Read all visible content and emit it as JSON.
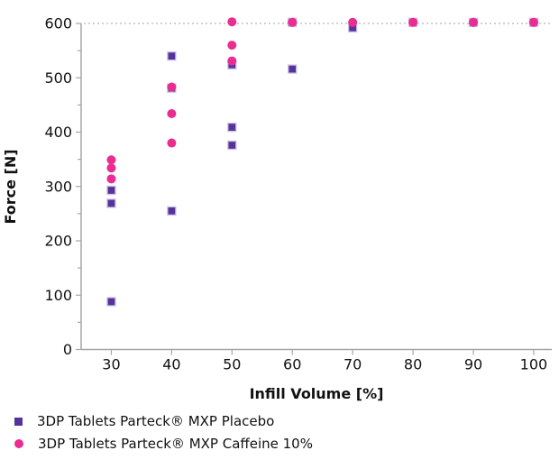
{
  "chart_data": {
    "type": "scatter",
    "title": "",
    "xlabel": "Infill Volume [%]",
    "ylabel": "Force [N]",
    "xlim": [
      25,
      103
    ],
    "ylim": [
      0,
      600
    ],
    "x_ticks": [
      30,
      40,
      50,
      60,
      70,
      80,
      90,
      100
    ],
    "y_ticks": [
      0,
      100,
      200,
      300,
      400,
      500,
      600
    ],
    "y_minor_ticks": [
      50,
      150,
      250,
      350,
      450,
      550
    ],
    "grid": false,
    "legend_position": "bottom-left",
    "axis_color": "#A6A6A6",
    "text_color": "#111111",
    "reference_line": {
      "y": 600,
      "style": "dotted",
      "color": "#B3B3B3"
    },
    "series": [
      {
        "name": "3DP Tablets Parteck® MXP Placebo",
        "marker": "square",
        "color": "#56339B",
        "border_color": "#CBBFE5",
        "points": [
          [
            30,
            88
          ],
          [
            30,
            269
          ],
          [
            30,
            293
          ],
          [
            40,
            255
          ],
          [
            40,
            481
          ],
          [
            40,
            540
          ],
          [
            50,
            376
          ],
          [
            50,
            409
          ],
          [
            50,
            524
          ],
          [
            60,
            516
          ],
          [
            60,
            602
          ],
          [
            70,
            592
          ],
          [
            80,
            602
          ],
          [
            90,
            602
          ],
          [
            100,
            602
          ]
        ]
      },
      {
        "name": "3DP Tablets Parteck® MXP Caffeine 10%",
        "marker": "circle",
        "color": "#EB2D92",
        "border_color": "#EB2D92",
        "points": [
          [
            30,
            314
          ],
          [
            30,
            334
          ],
          [
            30,
            349
          ],
          [
            40,
            380
          ],
          [
            40,
            434
          ],
          [
            40,
            483
          ],
          [
            50,
            531
          ],
          [
            50,
            560
          ],
          [
            50,
            603
          ],
          [
            60,
            602
          ],
          [
            70,
            602
          ],
          [
            80,
            602
          ],
          [
            90,
            602
          ],
          [
            100,
            602
          ]
        ]
      }
    ]
  }
}
